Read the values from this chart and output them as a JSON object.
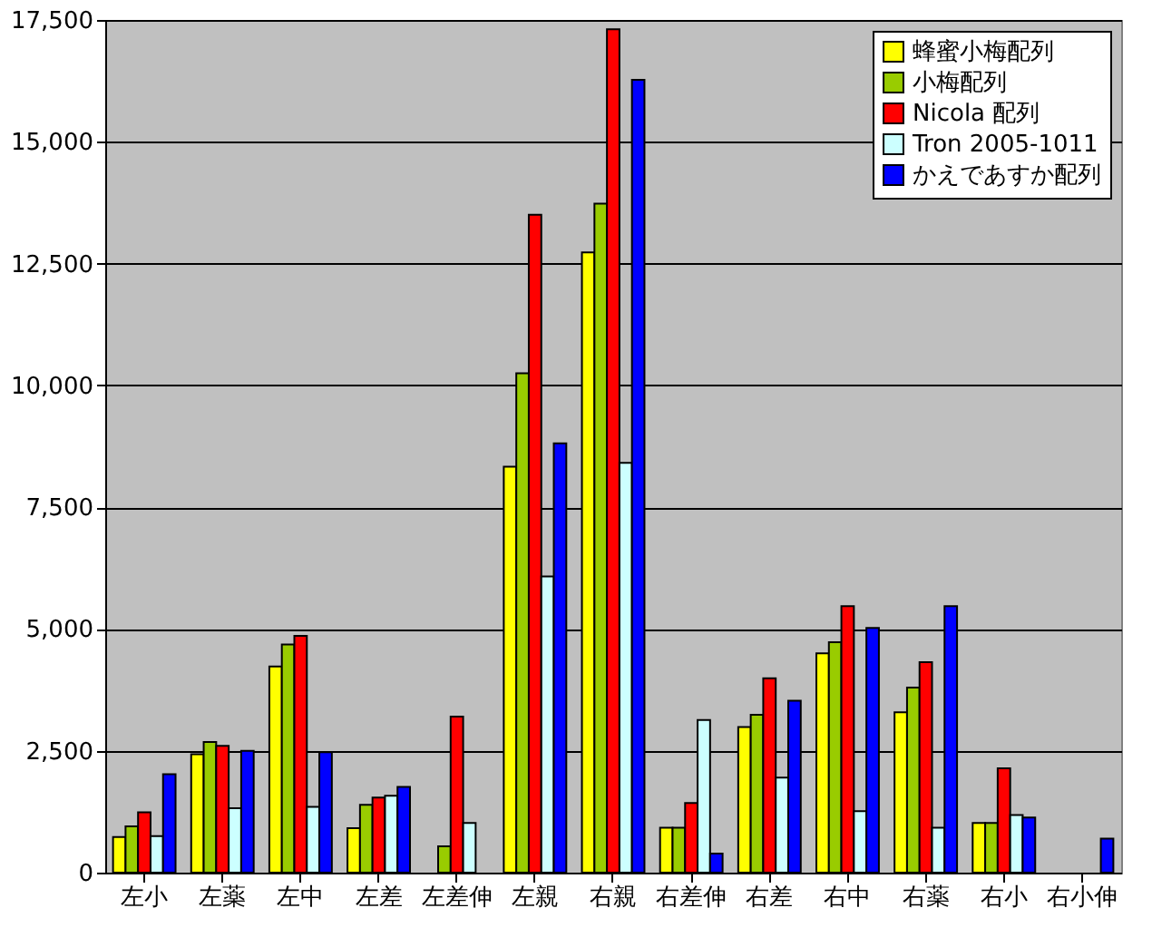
{
  "chart_data": {
    "type": "bar",
    "categories": [
      "左小",
      "左薬",
      "左中",
      "左差",
      "左差伸",
      "左親",
      "右親",
      "右差伸",
      "右差",
      "右中",
      "右薬",
      "右小",
      "右小伸"
    ],
    "series": [
      {
        "name": "蜂蜜小梅配列",
        "color": "#ffff00",
        "values": [
          730,
          2430,
          4230,
          910,
          null,
          8330,
          12730,
          920,
          2990,
          4500,
          3290,
          1020,
          null
        ]
      },
      {
        "name": "小梅配列",
        "color": "#99cc00",
        "values": [
          950,
          2680,
          4680,
          1390,
          540,
          10250,
          13730,
          920,
          3240,
          4730,
          3800,
          1020,
          null
        ]
      },
      {
        "name": "Nicola 配列",
        "color": "#ff0000",
        "values": [
          1240,
          2600,
          4860,
          1540,
          3200,
          13500,
          17310,
          1430,
          3990,
          5470,
          4320,
          2140,
          null
        ]
      },
      {
        "name": "Tron 2005-1011",
        "color": "#ccffff",
        "values": [
          750,
          1320,
          1350,
          1580,
          1020,
          6080,
          8410,
          3130,
          1950,
          1260,
          920,
          1180,
          null
        ]
      },
      {
        "name": "かえであすか配列",
        "color": "#0000ff",
        "values": [
          2020,
          2500,
          2470,
          1760,
          null,
          8810,
          16270,
          390,
          3530,
          5020,
          5470,
          1130,
          700
        ]
      }
    ],
    "ylim": [
      0,
      17500
    ],
    "yticks": [
      0,
      {
        "value": 2500,
        "label": "2,500"
      },
      {
        "value": 5000,
        "label": "5,000"
      },
      {
        "value": 7500,
        "label": "7,500"
      },
      {
        "value": 10000,
        "label": "10,000"
      },
      {
        "value": 12500,
        "label": "12,500"
      },
      {
        "value": 15000,
        "label": "15,000"
      },
      {
        "value": 17500,
        "label": "17,500"
      }
    ],
    "grid": "y",
    "legend": "top right"
  }
}
